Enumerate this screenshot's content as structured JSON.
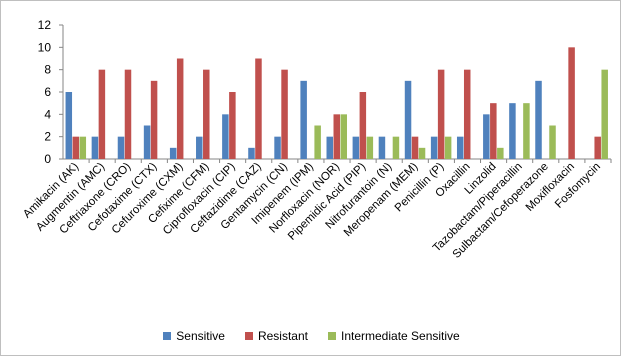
{
  "chart_data": {
    "type": "bar",
    "categories": [
      "Amikacin (AK)",
      "Augmentin (AMC)",
      "Ceftriaxone (CRO)",
      "Cefotaxime (CTX)",
      "Cefuroxime (CXM)",
      "Cefixime (CFM)",
      "Ciprofloxacin (CIP)",
      "Ceftazidime (CAZ)",
      "Gentamycin (CN)",
      "Imipenem (IPM)",
      "Norfloxacin (NOR)",
      "Pipemidic Acid (PIP)",
      "Nitrofurantoin (N)",
      "Meropenam (MEM)",
      "Penicillin (P)",
      "Oxacillin",
      "Linzolid",
      "Tazobactam/Piperacillin",
      "Sulbactam/Cefoperazone",
      "Moxifloxacin",
      "Fosfomycin"
    ],
    "series": [
      {
        "name": "Sensitive",
        "color": "#4f81bd",
        "values": [
          6,
          2,
          2,
          3,
          1,
          2,
          4,
          1,
          2,
          7,
          2,
          2,
          2,
          7,
          2,
          2,
          4,
          5,
          7,
          0,
          0
        ]
      },
      {
        "name": "Resistant",
        "color": "#c0504d",
        "values": [
          2,
          8,
          8,
          7,
          9,
          8,
          6,
          9,
          8,
          0,
          4,
          6,
          0,
          2,
          8,
          8,
          5,
          0,
          0,
          10,
          2
        ]
      },
      {
        "name": "Intermediate Sensitive",
        "color": "#9bbb59",
        "values": [
          2,
          0,
          0,
          0,
          0,
          0,
          0,
          0,
          0,
          3,
          4,
          2,
          2,
          1,
          2,
          0,
          1,
          5,
          3,
          0,
          8
        ]
      }
    ],
    "ylim": [
      0,
      12
    ],
    "yticks": [
      0,
      2,
      4,
      6,
      8,
      10,
      12
    ],
    "grid": false,
    "legend_position": "bottom",
    "title": "",
    "xlabel": "",
    "ylabel": ""
  }
}
